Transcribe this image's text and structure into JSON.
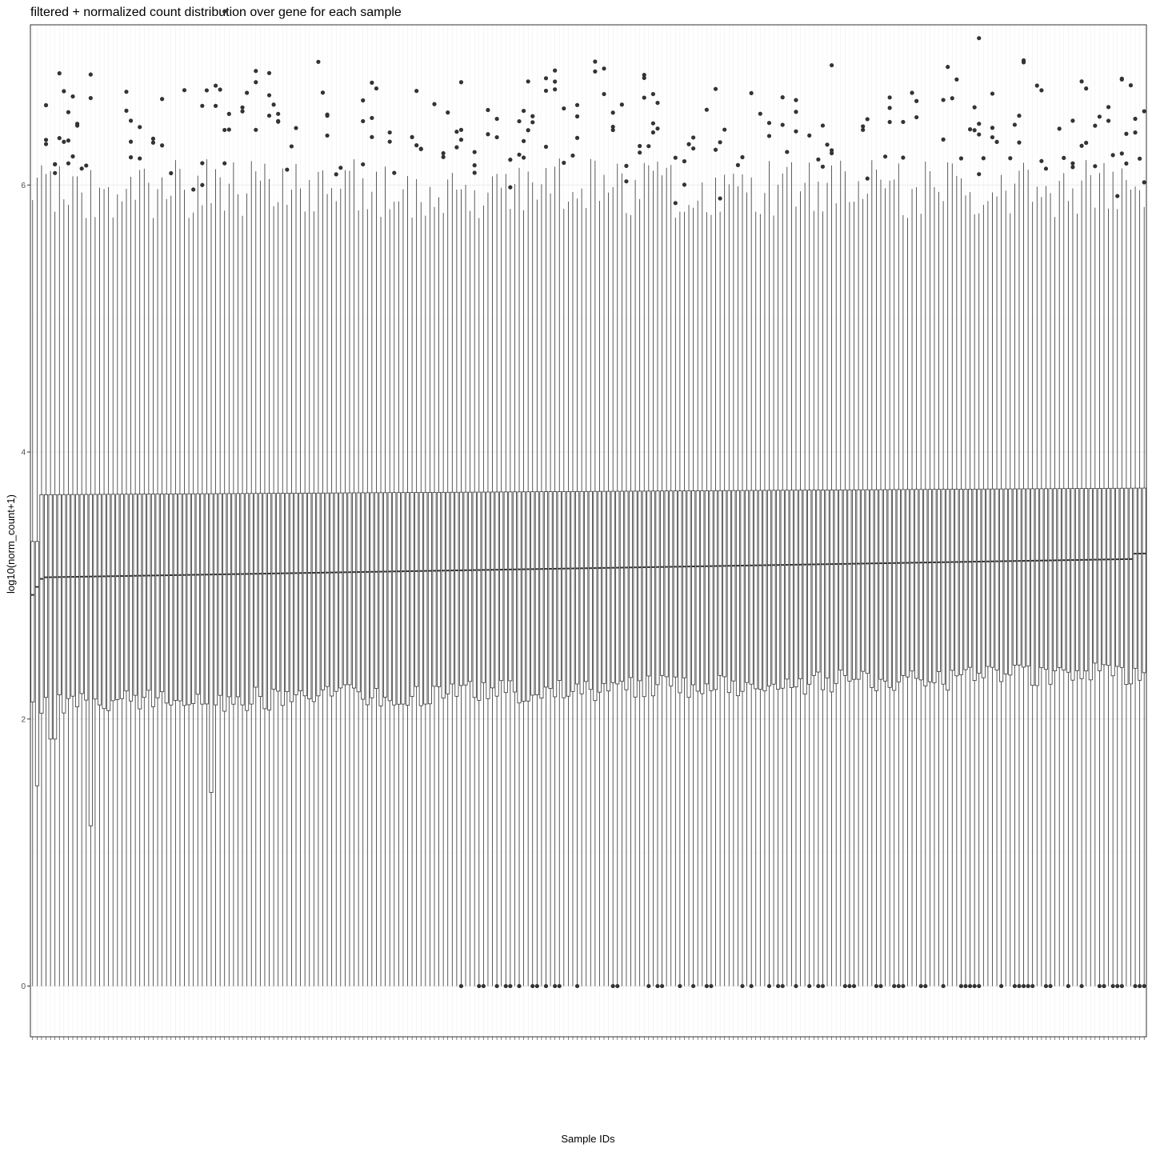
{
  "chart_data": {
    "type": "boxplot",
    "title": "filtered + normalized count distribution over gene for each sample",
    "xlabel": "Sample IDs",
    "ylabel": "log10(norm_count+1)",
    "ylim": [
      -0.38,
      7.2
    ],
    "yticks": [
      0,
      2,
      4,
      6
    ],
    "grid": true,
    "legend": "none",
    "sample_count": 250,
    "box_color": "#333333",
    "panel_border": "#333333",
    "grid_major_color": "#ebebeb",
    "grid_minor_color": "#f5f5f5",
    "summary_stats": {
      "median_first": 2.93,
      "median_last": 3.23,
      "q3_typical": 3.68,
      "q3_last": 3.73,
      "q1_range": [
        1.2,
        2.38
      ],
      "upper_whisker_range": [
        5.5,
        6.3
      ],
      "lower_whisker_min": 0,
      "outlier_max": 7.3
    }
  }
}
